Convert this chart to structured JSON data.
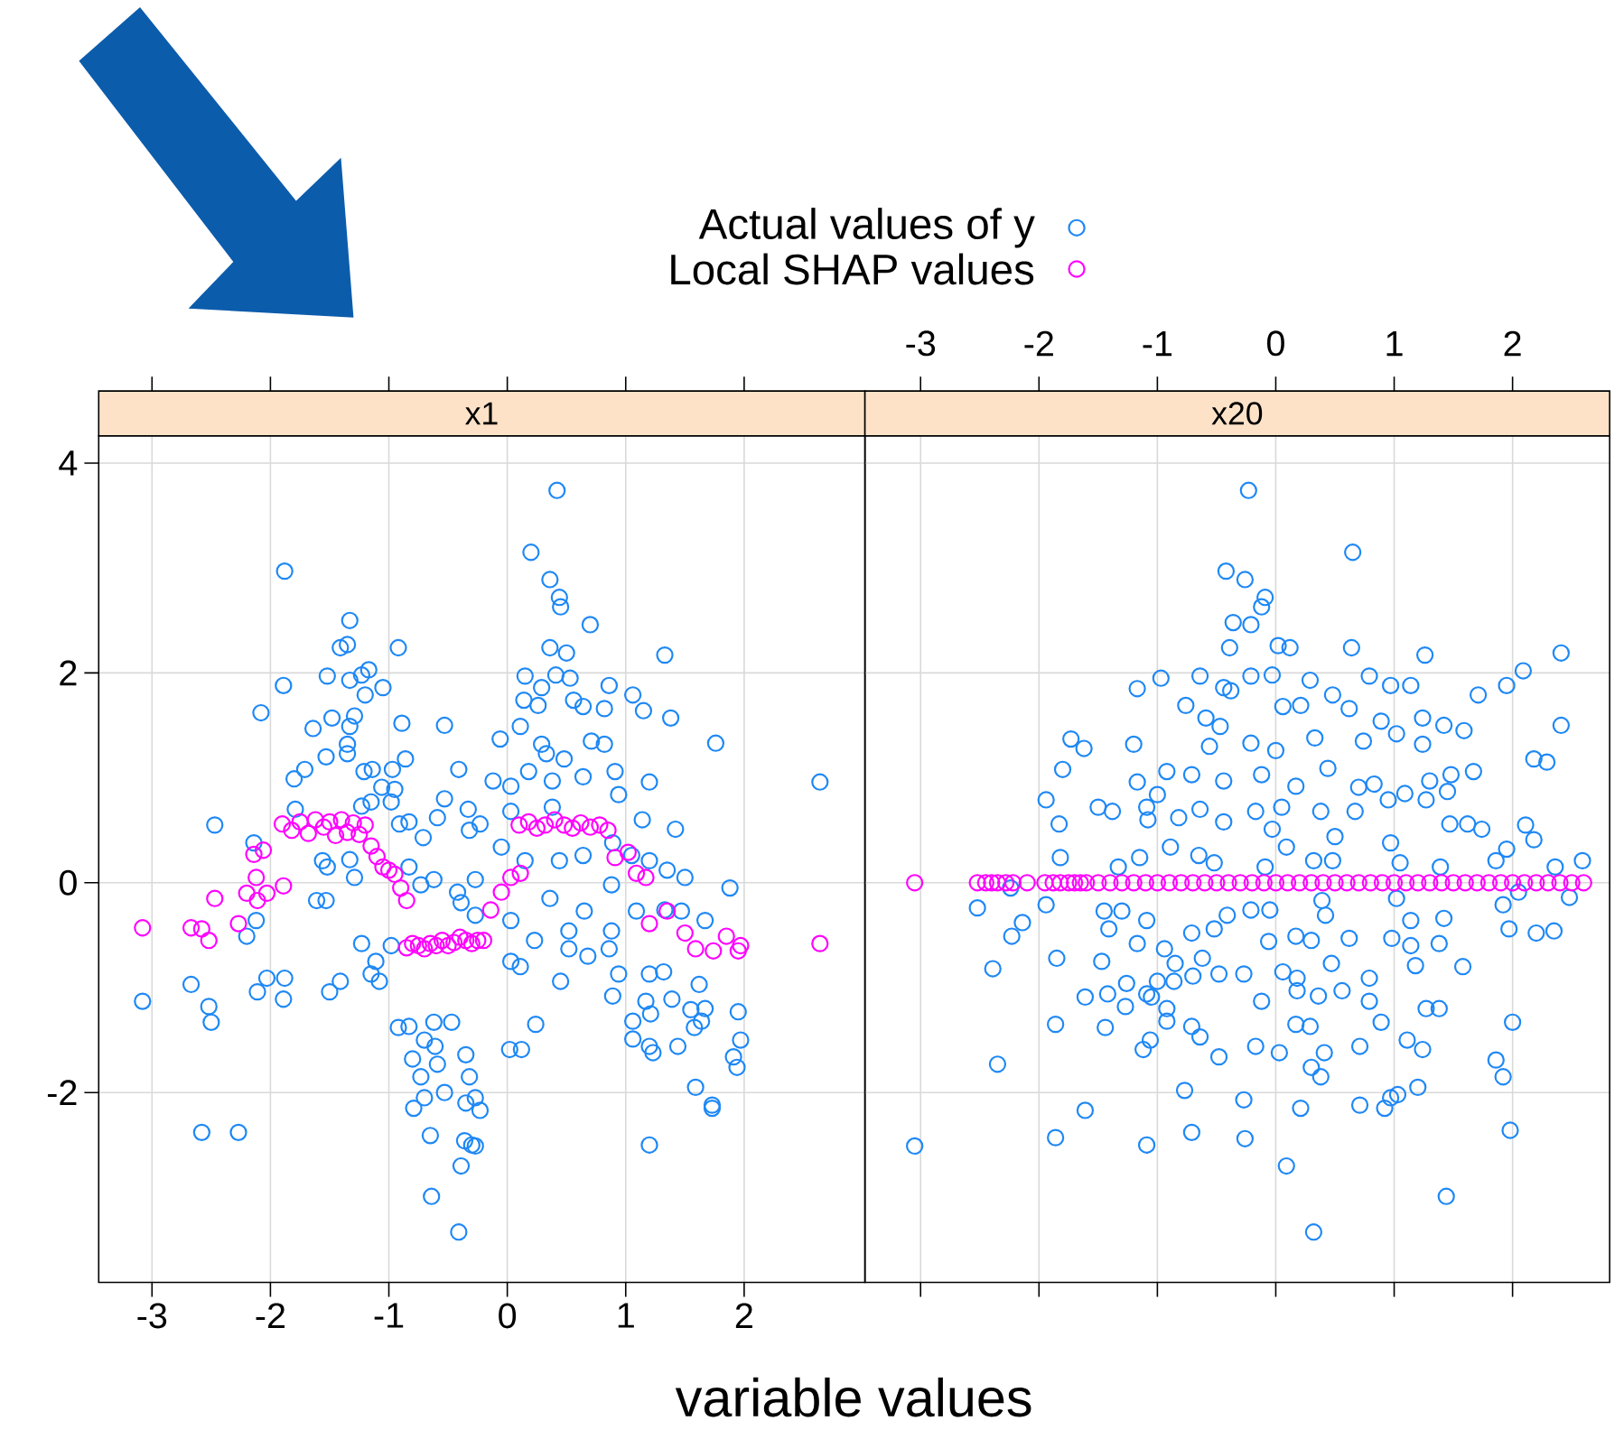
{
  "chart_data": [
    {
      "type": "scatter",
      "title": "x1",
      "xlabel": "variable values",
      "xlim": [
        -3.45,
        3.02
      ],
      "ylim": [
        -3.81,
        4.26
      ],
      "xticks": [
        -3,
        -2,
        -1,
        0,
        1,
        2
      ],
      "yticks": [
        -2,
        0,
        2,
        4
      ],
      "grid": true,
      "legend": "top",
      "marker": "circle",
      "series": [
        {
          "name": "Actual values of y",
          "color": "#1e88f5",
          "x": [
            -1.88,
            -1.33,
            -1.41,
            -1.35,
            -0.92,
            -1.89,
            -2.08,
            -1.52,
            -1.23,
            -1.17,
            -1.05,
            -1.33,
            -1.2,
            -1.64,
            -1.48,
            -1.29,
            -1.33,
            -0.89,
            -0.53,
            -1.35,
            -1.35,
            -1.53,
            -0.86,
            -1.21,
            -1.14,
            -0.97,
            -0.41,
            -1.71,
            -1.8,
            -1.06,
            -0.95,
            -0.53,
            -0.33,
            -1.79,
            -0.98,
            -1.15,
            -1.23,
            -2.47,
            -0.83,
            -0.59,
            -0.71,
            -0.32,
            -0.91,
            -2.14,
            -1.56,
            -1.52,
            -1.33,
            -1.29,
            -1.61,
            -1.53,
            -0.83,
            -0.73,
            -0.62,
            -0.42,
            -0.27,
            -0.39,
            -0.27,
            -2.12,
            -2.2,
            -1.23,
            -1.11,
            -0.98,
            -1.15,
            -1.08,
            -3.08,
            -2.67,
            -2.52,
            -2.5,
            -2.03,
            -2.11,
            -1.88,
            -1.89,
            -1.41,
            -1.5,
            -0.92,
            -0.83,
            -0.62,
            -0.47,
            -0.7,
            -0.61,
            -0.8,
            -0.73,
            -0.59,
            -0.35,
            -0.32,
            -0.79,
            -0.7,
            -0.53,
            -0.35,
            -0.27,
            -2.58,
            -2.27,
            -0.65,
            -0.36,
            -0.39,
            -0.3,
            -0.64,
            -0.41,
            0.42,
            0.2,
            0.36,
            0.44,
            0.45,
            0.7,
            0.36,
            0.5,
            1.33,
            0.15,
            0.41,
            0.53,
            0.29,
            0.86,
            1.06,
            0.14,
            0.26,
            0.56,
            0.64,
            0.82,
            1.15,
            1.38,
            1.76,
            -0.06,
            0.11,
            0.29,
            0.33,
            0.48,
            0.71,
            0.82,
            -0.12,
            0.03,
            0.18,
            0.38,
            0.64,
            0.91,
            1.2,
            2.64,
            -0.23,
            0.03,
            0.38,
            0.94,
            1.14,
            1.42,
            -0.05,
            0.15,
            0.44,
            0.64,
            0.89,
            1.05,
            1.2,
            1.35,
            1.5,
            1.88,
            0.36,
            0.65,
            0.88,
            1.09,
            1.33,
            1.47,
            1.67,
            0.03,
            0.23,
            0.52,
            0.52,
            0.68,
            0.88,
            0.86,
            0.03,
            0.11,
            0.45,
            0.94,
            0.89,
            1.2,
            1.32,
            1.39,
            1.17,
            1.21,
            1.06,
            1.62,
            1.67,
            1.55,
            1.64,
            1.58,
            1.95,
            1.97,
            1.91,
            1.94,
            1.06,
            1.2,
            1.23,
            1.44,
            0.02,
            0.12,
            0.24,
            1.59,
            1.73,
            1.73,
            1.2,
            -0.23,
            -0.27
          ],
          "values": [
            2.97,
            2.5,
            2.24,
            2.27,
            2.24,
            1.88,
            1.62,
            1.97,
            1.98,
            2.03,
            1.86,
            1.93,
            1.79,
            1.47,
            1.57,
            1.59,
            1.49,
            1.52,
            1.5,
            1.32,
            1.23,
            1.2,
            1.18,
            1.06,
            1.08,
            1.08,
            1.08,
            1.08,
            0.99,
            0.91,
            0.89,
            0.8,
            0.7,
            0.7,
            0.77,
            0.77,
            0.73,
            0.55,
            0.58,
            0.62,
            0.43,
            0.5,
            0.56,
            0.38,
            0.21,
            0.15,
            0.22,
            0.05,
            -0.17,
            -0.17,
            0.15,
            -0.02,
            0.03,
            -0.09,
            0.03,
            -0.19,
            -0.31,
            -0.36,
            -0.51,
            -0.58,
            -0.75,
            -0.6,
            -0.87,
            -0.94,
            -1.13,
            -0.97,
            -1.18,
            -1.33,
            -0.91,
            -1.04,
            -0.91,
            -1.11,
            -0.94,
            -1.04,
            -1.38,
            -1.37,
            -1.33,
            -1.33,
            -1.5,
            -1.56,
            -1.68,
            -1.85,
            -1.73,
            -1.64,
            -1.85,
            -2.15,
            -2.05,
            -2.0,
            -2.1,
            -2.05,
            -2.38,
            -2.38,
            -2.41,
            -2.46,
            -2.7,
            -2.5,
            -2.99,
            -3.33,
            3.74,
            3.15,
            2.89,
            2.72,
            2.63,
            2.46,
            2.24,
            2.19,
            2.17,
            1.97,
            1.98,
            1.95,
            1.86,
            1.88,
            1.79,
            1.74,
            1.69,
            1.74,
            1.68,
            1.66,
            1.64,
            1.57,
            1.33,
            1.37,
            1.49,
            1.32,
            1.23,
            1.18,
            1.35,
            1.32,
            0.97,
            0.92,
            1.06,
            0.97,
            1.01,
            1.06,
            0.96,
            0.96,
            0.56,
            0.68,
            0.72,
            0.84,
            0.6,
            0.51,
            0.34,
            0.21,
            0.21,
            0.26,
            0.38,
            0.26,
            0.21,
            0.12,
            0.05,
            -0.05,
            -0.15,
            -0.27,
            -0.02,
            -0.27,
            -0.26,
            -0.27,
            -0.36,
            -0.36,
            -0.55,
            -0.46,
            -0.63,
            -0.7,
            -0.46,
            -0.63,
            -0.75,
            -0.8,
            -0.94,
            -0.87,
            -1.08,
            -0.87,
            -0.85,
            -1.11,
            -1.13,
            -1.25,
            -1.32,
            -0.97,
            -1.2,
            -1.21,
            -1.32,
            -1.38,
            -1.23,
            -1.5,
            -1.66,
            -1.76,
            -1.49,
            -1.56,
            -1.62,
            -1.56,
            -1.59,
            -1.59,
            -1.35,
            -1.95,
            -2.12,
            -2.15,
            -2.5,
            -2.17,
            -2.51
          ]
        },
        {
          "name": "Local SHAP values",
          "color": "#ff00ff",
          "x": [
            -3.08,
            -2.67,
            -2.58,
            -2.52,
            -2.27,
            -2.47,
            -2.2,
            -2.12,
            -2.11,
            -2.03,
            -1.89,
            -2.14,
            -2.06,
            -1.9,
            -1.82,
            -1.75,
            -1.68,
            -1.62,
            -1.55,
            -1.5,
            -1.45,
            -1.4,
            -1.35,
            -1.3,
            -1.25,
            -1.2,
            -1.15,
            -1.1,
            -1.05,
            -1.0,
            -0.95,
            -0.9,
            -0.85,
            -0.85,
            -0.8,
            -0.75,
            -0.7,
            -0.65,
            -0.6,
            -0.55,
            -0.5,
            -0.45,
            -0.4,
            -0.35,
            -0.3,
            -0.25,
            -0.2,
            -0.14,
            -0.05,
            0.03,
            0.11,
            0.1,
            0.18,
            0.25,
            0.32,
            0.4,
            0.48,
            0.55,
            0.62,
            0.7,
            0.78,
            0.85,
            0.91,
            1.02,
            1.09,
            1.17,
            1.2,
            1.35,
            1.5,
            1.59,
            1.74,
            1.85,
            1.97,
            1.95,
            2.64
          ],
          "values": [
            -0.43,
            -0.43,
            -0.44,
            -0.55,
            -0.39,
            -0.15,
            -0.1,
            0.05,
            -0.17,
            -0.1,
            -0.03,
            0.27,
            0.31,
            0.56,
            0.5,
            0.58,
            0.47,
            0.6,
            0.53,
            0.58,
            0.45,
            0.6,
            0.48,
            0.57,
            0.46,
            0.55,
            0.35,
            0.25,
            0.15,
            0.12,
            0.08,
            -0.05,
            -0.17,
            -0.62,
            -0.58,
            -0.6,
            -0.63,
            -0.58,
            -0.6,
            -0.55,
            -0.6,
            -0.57,
            -0.52,
            -0.55,
            -0.58,
            -0.55,
            -0.55,
            -0.26,
            -0.09,
            0.05,
            0.09,
            0.55,
            0.58,
            0.52,
            0.55,
            0.6,
            0.55,
            0.52,
            0.57,
            0.53,
            0.55,
            0.5,
            0.24,
            0.29,
            0.09,
            0.05,
            -0.39,
            -0.27,
            -0.48,
            -0.63,
            -0.65,
            -0.51,
            -0.6,
            -0.65,
            -0.58
          ]
        }
      ]
    },
    {
      "type": "scatter",
      "title": "x20",
      "xlim": [
        -3.47,
        2.82
      ],
      "ylim": [
        -3.81,
        4.26
      ],
      "xticks": [
        -3,
        -2,
        -1,
        0,
        1,
        2
      ],
      "yticks": [
        -2,
        0,
        2,
        4
      ],
      "grid": true,
      "marker": "circle",
      "tick_labels": "x",
      "series": [
        {
          "color": "#1e88f5",
          "x": [
            -0.42,
            -0.36,
            -0.39,
            -0.97,
            -0.64,
            -1.17,
            -0.44,
            -0.38,
            -0.76,
            -0.59,
            -0.47,
            -0.56,
            -1.2,
            -1.73,
            -1.62,
            -1.8,
            -0.92,
            -0.71,
            -1.17,
            -0.44,
            -1.94,
            -1.5,
            -1.38,
            -1.09,
            -1.0,
            -0.64,
            -0.82,
            -1.08,
            -1.83,
            -0.44,
            -1.82,
            -1.15,
            -0.89,
            -0.65,
            -0.52,
            -1.33,
            -2.52,
            -2.14,
            -2.23,
            -1.94,
            -2.24,
            -1.45,
            -1.3,
            -1.09,
            -1.41,
            -1.17,
            -0.94,
            -0.71,
            -0.52,
            -0.41,
            -2.39,
            -1.85,
            -1.47,
            -0.85,
            -0.62,
            -0.48,
            -1.61,
            -1.42,
            -1.26,
            -1.09,
            -1.0,
            -0.86,
            -0.7,
            -1.27,
            -1.05,
            -0.92,
            -1.86,
            -1.44,
            -1.12,
            -1.06,
            -0.92,
            -0.71,
            -0.64,
            -0.48,
            -2.35,
            -1.61,
            -0.77,
            -1.86,
            -1.09,
            -0.71,
            -3.05,
            -0.23,
            0.65,
            -0.26,
            -0.09,
            -0.12,
            -0.21,
            0.02,
            0.12,
            0.64,
            1.26,
            2.41,
            -0.21,
            -0.03,
            0.29,
            0.79,
            0.97,
            1.14,
            1.71,
            1.95,
            2.09,
            0.06,
            0.21,
            0.48,
            0.62,
            0.89,
            1.24,
            1.42,
            1.59,
            2.41,
            -0.21,
            0.0,
            0.33,
            0.74,
            1.02,
            1.24,
            2.18,
            2.29,
            -0.12,
            0.17,
            0.44,
            0.7,
            0.83,
            1.09,
            1.3,
            1.48,
            1.67,
            -0.17,
            0.05,
            0.38,
            0.67,
            0.95,
            1.27,
            1.45,
            1.47,
            1.62,
            1.74,
            2.11,
            2.18,
            1.95,
            1.86,
            -0.03,
            0.09,
            0.5,
            0.97,
            -0.09,
            0.32,
            0.48,
            1.05,
            1.39,
            2.36,
            2.59,
            -0.21,
            -0.05,
            0.39,
            0.42,
            1.02,
            1.14,
            1.42,
            1.92,
            2.48,
            2.05,
            -0.06,
            0.17,
            0.3,
            0.62,
            0.98,
            1.14,
            1.38,
            1.97,
            2.2,
            2.35,
            -0.27,
            0.06,
            0.18,
            0.47,
            0.79,
            1.18,
            1.58,
            -0.12,
            0.18,
            0.36,
            0.56,
            0.79,
            1.27,
            1.38,
            2.0,
            -0.17,
            0.03,
            0.17,
            0.29,
            0.71,
            0.89,
            1.11,
            1.24,
            1.86,
            1.92,
            0.3,
            0.38,
            0.41,
            1.2,
            -0.27,
            0.21,
            0.71,
            0.92,
            0.97,
            1.03,
            1.98,
            -0.26,
            0.09,
            1.44,
            0.32
          ],
          "values": [
            2.97,
            2.48,
            2.24,
            1.95,
            1.97,
            1.85,
            1.86,
            1.83,
            1.69,
            1.57,
            1.49,
            1.3,
            1.32,
            1.37,
            1.28,
            1.08,
            1.06,
            1.03,
            0.96,
            0.97,
            0.79,
            0.72,
            0.68,
            0.72,
            0.84,
            0.7,
            0.62,
            0.6,
            0.56,
            0.58,
            0.24,
            0.24,
            0.34,
            0.26,
            0.19,
            0.15,
            -0.24,
            -0.38,
            -0.51,
            -0.21,
            -0.05,
            -0.27,
            -0.27,
            -0.36,
            -0.44,
            -0.58,
            -0.63,
            -0.48,
            -0.44,
            -0.31,
            -0.82,
            -0.72,
            -0.75,
            -0.77,
            -0.72,
            -0.87,
            -1.09,
            -1.06,
            -0.96,
            -1.06,
            -0.94,
            -0.94,
            -0.89,
            -1.18,
            -1.09,
            -1.2,
            -1.35,
            -1.38,
            -1.59,
            -1.5,
            -1.32,
            -1.37,
            -1.47,
            -1.66,
            -1.73,
            -2.17,
            -1.98,
            -2.43,
            -2.5,
            -2.38,
            -2.51,
            3.74,
            3.15,
            2.89,
            2.72,
            2.63,
            2.46,
            2.26,
            2.24,
            2.24,
            2.17,
            2.19,
            1.97,
            1.98,
            1.93,
            1.97,
            1.88,
            1.88,
            1.79,
            1.88,
            2.02,
            1.68,
            1.69,
            1.79,
            1.66,
            1.54,
            1.57,
            1.5,
            1.45,
            1.5,
            1.33,
            1.26,
            1.38,
            1.35,
            1.42,
            1.32,
            1.18,
            1.15,
            1.03,
            0.92,
            1.09,
            0.91,
            0.94,
            0.85,
            0.97,
            1.03,
            1.06,
            0.68,
            0.72,
            0.68,
            0.68,
            0.79,
            0.79,
            0.87,
            0.56,
            0.56,
            0.51,
            0.55,
            0.41,
            0.32,
            0.21,
            0.51,
            0.34,
            0.44,
            0.38,
            0.15,
            0.21,
            0.21,
            0.19,
            0.15,
            0.15,
            0.21,
            -0.26,
            -0.26,
            -0.17,
            -0.31,
            -0.15,
            -0.36,
            -0.34,
            -0.21,
            -0.14,
            -0.09,
            -0.56,
            -0.51,
            -0.55,
            -0.53,
            -0.53,
            -0.6,
            -0.58,
            -0.44,
            -0.48,
            -0.46,
            -0.87,
            -0.85,
            -0.91,
            -0.77,
            -0.91,
            -0.79,
            -0.8,
            -1.13,
            -1.03,
            -1.08,
            -1.03,
            -1.13,
            -1.2,
            -1.2,
            -1.33,
            -1.56,
            -1.62,
            -1.35,
            -1.37,
            -1.56,
            -1.33,
            -1.5,
            -1.59,
            -1.69,
            -1.85,
            -1.76,
            -1.85,
            -1.62,
            -1.95,
            -2.07,
            -2.15,
            -2.12,
            -2.15,
            -2.05,
            -2.02,
            -2.36,
            -2.44,
            -2.7,
            -2.99,
            -3.33
          ]
        },
        {
          "color": "#ff00ff",
          "x": [
            -3.05,
            -2.52,
            -2.45,
            -2.4,
            -2.35,
            -2.28,
            -2.22,
            -2.1,
            -1.95,
            -1.88,
            -1.82,
            -1.75,
            -1.7,
            -1.65,
            -1.6,
            -1.5,
            -1.4,
            -1.3,
            -1.2,
            -1.1,
            -1.0,
            -0.9,
            -0.8,
            -0.7,
            -0.6,
            -0.5,
            -0.4,
            -0.3,
            -0.2,
            -0.1,
            0.0,
            0.1,
            0.2,
            0.3,
            0.4,
            0.5,
            0.6,
            0.7,
            0.8,
            0.9,
            1.0,
            1.1,
            1.2,
            1.3,
            1.4,
            1.5,
            1.6,
            1.7,
            1.8,
            1.9,
            2.0,
            2.1,
            2.2,
            2.3,
            2.4,
            2.5,
            2.6
          ],
          "values": [
            0,
            0,
            0,
            0,
            0,
            0,
            0,
            0,
            0,
            0,
            0,
            0,
            0,
            0,
            0,
            0,
            0,
            0,
            0,
            0,
            0,
            0,
            0,
            0,
            0,
            0,
            0,
            0,
            0,
            0,
            0,
            0,
            0,
            0,
            0,
            0,
            0,
            0,
            0,
            0,
            0,
            0,
            0,
            0,
            0,
            0,
            0,
            0,
            0,
            0,
            0,
            0,
            0,
            0,
            0,
            0,
            0
          ]
        }
      ]
    }
  ]
}
